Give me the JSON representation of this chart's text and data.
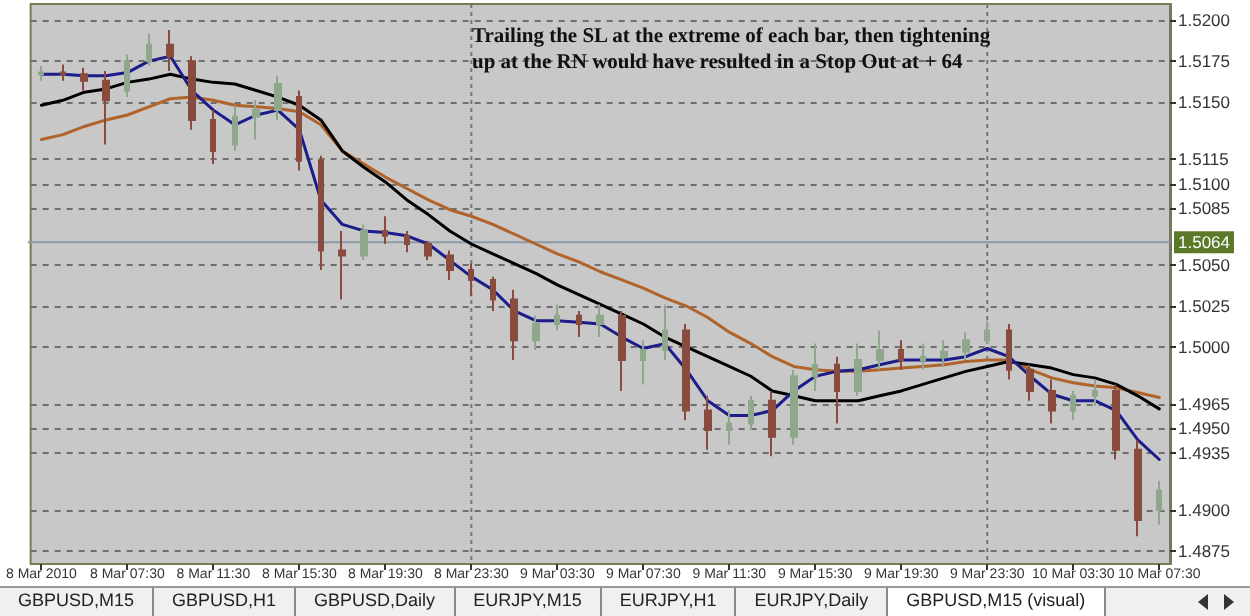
{
  "chart_data": {
    "type": "candlestick",
    "categories": [
      "8 Mar 2010",
      null,
      null,
      null,
      "8 Mar 07:30",
      null,
      null,
      null,
      "8 Mar 11:30",
      null,
      null,
      null,
      "8 Mar 15:30",
      null,
      null,
      null,
      "8 Mar 19:30",
      null,
      null,
      null,
      "8 Mar 23:30",
      null,
      null,
      null,
      "9 Mar 03:30",
      null,
      null,
      null,
      "9 Mar 07:30",
      null,
      null,
      null,
      "9 Mar 11:30",
      null,
      null,
      null,
      "9 Mar 15:30",
      null,
      null,
      null,
      "9 Mar 19:30",
      null,
      null,
      null,
      "9 Mar 23:30",
      null,
      null,
      null,
      "10 Mar 03:30",
      null,
      null,
      null,
      "10 Mar 07:30"
    ],
    "ohlc": [
      [
        1.5167,
        1.5172,
        1.5163,
        1.5168
      ],
      [
        1.5168,
        1.5173,
        1.5163,
        1.5167
      ],
      [
        1.5167,
        1.5171,
        1.5157,
        1.5163
      ],
      [
        1.5163,
        1.5169,
        1.5124,
        1.5151
      ],
      [
        1.5157,
        1.5179,
        1.5153,
        1.5175
      ],
      [
        1.5175,
        1.5192,
        1.5172,
        1.5185
      ],
      [
        1.5185,
        1.5194,
        1.5169,
        1.5178
      ],
      [
        1.5175,
        1.5178,
        1.5133,
        1.5139
      ],
      [
        1.5139,
        1.5145,
        1.5112,
        1.512
      ],
      [
        1.5124,
        1.5148,
        1.512,
        1.5141
      ],
      [
        1.5141,
        1.5151,
        1.5127,
        1.5145
      ],
      [
        1.5145,
        1.5166,
        1.5139,
        1.5161
      ],
      [
        1.5153,
        1.5157,
        1.5108,
        1.5114
      ],
      [
        1.5114,
        1.5117,
        1.5047,
        1.5059
      ],
      [
        1.5059,
        1.5071,
        1.5029,
        1.5056
      ],
      [
        1.5056,
        1.5075,
        1.5053,
        1.5071
      ],
      [
        1.5071,
        1.508,
        1.5063,
        1.5068
      ],
      [
        1.5068,
        1.5071,
        1.5058,
        1.5063
      ],
      [
        1.5063,
        1.5065,
        1.5053,
        1.5056
      ],
      [
        1.5056,
        1.5059,
        1.5041,
        1.5047
      ],
      [
        1.5047,
        1.5051,
        1.5031,
        1.5041
      ],
      [
        1.5041,
        1.5043,
        1.5022,
        1.5029
      ],
      [
        1.5029,
        1.5035,
        1.4992,
        1.5004
      ],
      [
        1.5004,
        1.5019,
        1.4998,
        1.5014
      ],
      [
        1.5014,
        1.5026,
        1.501,
        1.5019
      ],
      [
        1.5019,
        1.5022,
        1.5006,
        1.5014
      ],
      [
        1.5014,
        1.5026,
        1.5006,
        1.5019
      ],
      [
        1.5019,
        1.5022,
        1.4973,
        1.4992
      ],
      [
        1.4992,
        1.5004,
        1.4977,
        1.4998
      ],
      [
        1.4998,
        1.5026,
        1.4992,
        1.501
      ],
      [
        1.501,
        1.5014,
        1.4955,
        1.4961
      ],
      [
        1.4961,
        1.497,
        1.4937,
        1.4949
      ],
      [
        1.4949,
        1.4961,
        1.494,
        1.4953
      ],
      [
        1.4953,
        1.497,
        1.4949,
        1.4967
      ],
      [
        1.4967,
        1.4973,
        1.4933,
        1.4945
      ],
      [
        1.4945,
        1.4986,
        1.494,
        1.4982
      ],
      [
        1.4982,
        1.5002,
        1.4973,
        1.4989
      ],
      [
        1.4989,
        1.4994,
        1.4953,
        1.4973
      ],
      [
        1.4973,
        1.5002,
        1.497,
        1.4992
      ],
      [
        1.4992,
        1.501,
        1.4986,
        1.4998
      ],
      [
        1.4998,
        1.5004,
        1.4986,
        1.4992
      ],
      [
        1.4992,
        1.5002,
        1.4986,
        1.4994
      ],
      [
        1.4994,
        1.5004,
        1.4988,
        1.4997
      ],
      [
        1.4997,
        1.5009,
        1.4992,
        1.5004
      ],
      [
        1.5004,
        1.5016,
        1.5002,
        1.501
      ],
      [
        1.501,
        1.5014,
        1.498,
        1.4986
      ],
      [
        1.4986,
        1.4989,
        1.4967,
        1.4973
      ],
      [
        1.4973,
        1.498,
        1.4953,
        1.4961
      ],
      [
        1.4961,
        1.4973,
        1.4955,
        1.497
      ],
      [
        1.497,
        1.498,
        1.4964,
        1.4973
      ],
      [
        1.4973,
        1.4977,
        1.4931,
        1.4937
      ],
      [
        1.4937,
        1.4943,
        1.4884,
        1.4894
      ],
      [
        1.49,
        1.4918,
        1.4891,
        1.4912
      ]
    ],
    "colors": [
      "#8fa88c",
      "#8a4b3f",
      "#8a4b3f",
      "#8a4b3f",
      "#8fa88c",
      "#8fa88c",
      "#8a4b3f",
      "#8a4b3f",
      "#8a4b3f",
      "#8fa88c",
      "#8fa88c",
      "#8fa88c",
      "#8a4b3f",
      "#8a4b3f",
      "#8a4b3f",
      "#8fa88c",
      "#8a4b3f",
      "#8a4b3f",
      "#8a4b3f",
      "#8a4b3f",
      "#8a4b3f",
      "#8a4b3f",
      "#8a4b3f",
      "#8fa88c",
      "#8fa88c",
      "#8a4b3f",
      "#8fa88c",
      "#8a4b3f",
      "#8fa88c",
      "#8fa88c",
      "#8a4b3f",
      "#8a4b3f",
      "#8fa88c",
      "#8fa88c",
      "#8a4b3f",
      "#8fa88c",
      "#8fa88c",
      "#8a4b3f",
      "#8fa88c",
      "#8fa88c",
      "#8a4b3f",
      "#8fa88c",
      "#8fa88c",
      "#8fa88c",
      "#8fa88c",
      "#8a4b3f",
      "#8a4b3f",
      "#8a4b3f",
      "#8fa88c",
      "#8fa88c",
      "#8a4b3f",
      "#8a4b3f",
      "#8fa88c"
    ],
    "series": [
      {
        "type": "line",
        "color": "#b0642c",
        "values": [
          1.5127,
          1.513,
          1.5135,
          1.5139,
          1.5142,
          1.5147,
          1.5152,
          1.5153,
          1.5151,
          1.5148,
          1.5147,
          1.5146,
          1.5144,
          1.5136,
          1.512,
          1.5112,
          1.5104,
          1.5097,
          1.509,
          1.5084,
          1.508,
          1.5075,
          1.5069,
          1.5063,
          1.5057,
          1.5052,
          1.5046,
          1.5041,
          1.5036,
          1.503,
          1.5025,
          1.5018,
          1.5009,
          1.5002,
          1.4994,
          1.4988,
          1.4986,
          1.4985,
          1.4985,
          1.4986,
          1.4987,
          1.4988,
          1.4989,
          1.4991,
          1.4992,
          1.4992,
          1.4986,
          1.4981,
          1.4978,
          1.4976,
          1.4975,
          1.4972,
          1.4969
        ]
      },
      {
        "type": "line",
        "color": "#000000",
        "values": [
          1.5148,
          1.5151,
          1.5156,
          1.5158,
          1.5162,
          1.5164,
          1.5167,
          1.5164,
          1.5162,
          1.5161,
          1.5157,
          1.5153,
          1.5148,
          1.5139,
          1.512,
          1.511,
          1.5101,
          1.509,
          1.5081,
          1.5071,
          1.5063,
          1.5057,
          1.5051,
          1.5045,
          1.5038,
          1.5032,
          1.5026,
          1.502,
          1.5014,
          1.5006,
          1.5,
          1.4994,
          1.4988,
          1.4982,
          1.4973,
          1.497,
          1.4967,
          1.4967,
          1.4967,
          1.497,
          1.4973,
          1.4977,
          1.4981,
          1.4985,
          1.4988,
          1.4991,
          1.4989,
          1.4987,
          1.4983,
          1.4981,
          1.4977,
          1.497,
          1.4962
        ]
      },
      {
        "type": "line",
        "color": "#1c1c8a",
        "values": [
          1.5167,
          1.5167,
          1.5166,
          1.5166,
          1.5168,
          1.5175,
          1.5178,
          1.5157,
          1.5145,
          1.5136,
          1.5142,
          1.5145,
          1.5133,
          1.509,
          1.5075,
          1.5071,
          1.507,
          1.5068,
          1.5063,
          1.5053,
          1.5043,
          1.5035,
          1.5022,
          1.5016,
          1.5016,
          1.5015,
          1.5014,
          1.5006,
          1.4999,
          1.5002,
          1.4986,
          1.4967,
          1.4958,
          1.4958,
          1.4961,
          1.4973,
          1.4982,
          1.4985,
          1.4986,
          1.4989,
          1.4992,
          1.4992,
          1.4992,
          1.4994,
          1.4999,
          1.4994,
          1.4982,
          1.4971,
          1.4967,
          1.4967,
          1.4961,
          1.4943,
          1.4931
        ]
      }
    ],
    "ylim": [
      1.4867,
      1.521
    ],
    "yticks": [
      {
        "value": 1.52,
        "label": "1.5200"
      },
      {
        "value": 1.5175,
        "label": "1.5175"
      },
      {
        "value": 1.515,
        "label": "1.5150"
      },
      {
        "value": 1.5115,
        "label": "1.5115"
      },
      {
        "value": 1.51,
        "label": "1.5100"
      },
      {
        "value": 1.5085,
        "label": "1.5085"
      },
      {
        "value": 1.505,
        "label": "1.5050"
      },
      {
        "value": 1.5025,
        "label": "1.5025"
      },
      {
        "value": 1.5,
        "label": "1.5000"
      },
      {
        "value": 1.4965,
        "label": "1.4965"
      },
      {
        "value": 1.495,
        "label": "1.4950"
      },
      {
        "value": 1.4935,
        "label": "1.4935"
      },
      {
        "value": 1.49,
        "label": "1.4900"
      },
      {
        "value": 1.4875,
        "label": "1.4875"
      }
    ],
    "grid": "y",
    "ref_lines": [
      {
        "axis": "y",
        "value": 1.5064,
        "label": "1.5064",
        "color": "#8a9aa8"
      },
      {
        "axis": "x",
        "value": "8 Mar 23:30",
        "line_style": "dotted",
        "color": "#777777"
      },
      {
        "axis": "x",
        "value": "9 Mar 23:30",
        "line_style": "dotted",
        "color": "#777777"
      }
    ],
    "annotations": [
      "Trailing the SL at the extreme of each bar, then tightening up at the RN would have resulted in a Stop Out at + 64",
      "GBPUSD,M15",
      "GBPUSD,H1",
      "GBPUSD,Daily",
      "EURJPY,M15",
      "EURJPY,H1",
      "EURJPY,Daily",
      "GBPUSD,M15 (visual)"
    ]
  }
}
